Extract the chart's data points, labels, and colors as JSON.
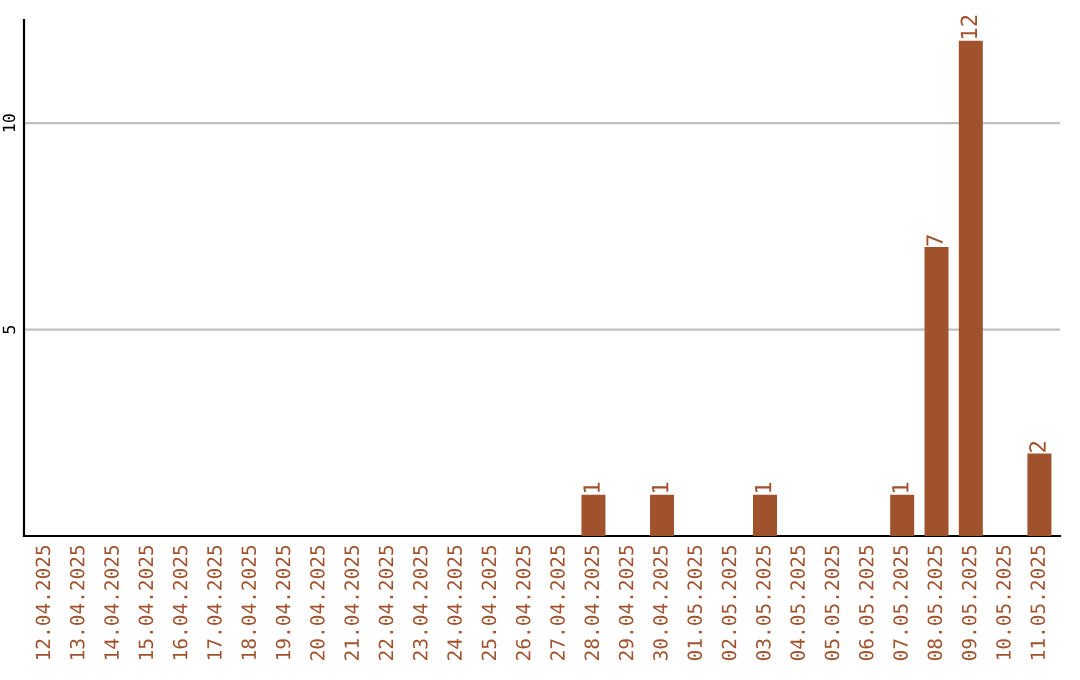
{
  "chart_data": {
    "type": "bar",
    "categories": [
      "12.04.2025",
      "13.04.2025",
      "14.04.2025",
      "15.04.2025",
      "16.04.2025",
      "17.04.2025",
      "18.04.2025",
      "19.04.2025",
      "20.04.2025",
      "21.04.2025",
      "22.04.2025",
      "23.04.2025",
      "24.04.2025",
      "25.04.2025",
      "26.04.2025",
      "27.04.2025",
      "28.04.2025",
      "29.04.2025",
      "30.04.2025",
      "01.05.2025",
      "02.05.2025",
      "03.05.2025",
      "04.05.2025",
      "05.05.2025",
      "06.05.2025",
      "07.05.2025",
      "08.05.2025",
      "09.05.2025",
      "10.05.2025",
      "11.05.2025"
    ],
    "values": [
      0,
      0,
      0,
      0,
      0,
      0,
      0,
      0,
      0,
      0,
      0,
      0,
      0,
      0,
      0,
      0,
      1,
      0,
      1,
      0,
      0,
      1,
      0,
      0,
      0,
      1,
      7,
      12,
      0,
      2
    ],
    "value_labels": [
      null,
      null,
      null,
      null,
      null,
      null,
      null,
      null,
      null,
      null,
      null,
      null,
      null,
      null,
      null,
      null,
      "1",
      null,
      "1",
      null,
      null,
      "1",
      null,
      null,
      null,
      "1",
      "7",
      "12",
      null,
      "2"
    ],
    "color": "#a0522d",
    "ylim": [
      0,
      12.5
    ],
    "yticks": [
      5,
      10
    ],
    "grid": "y"
  }
}
